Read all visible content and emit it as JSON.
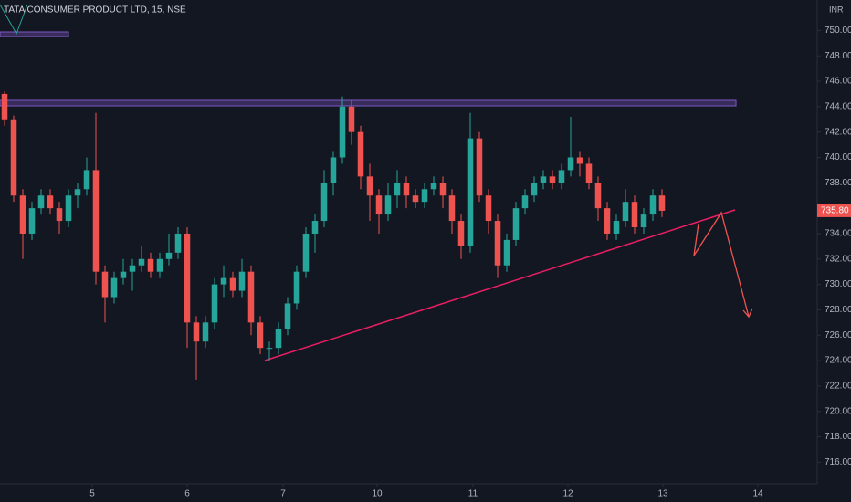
{
  "chart_data": {
    "type": "candlestick",
    "title": "TATA CONSUMER PRODUCT LTD, 15, NSE",
    "currency": "INR",
    "x": [
      0,
      1,
      2,
      3,
      4,
      5,
      6,
      7,
      8,
      9,
      10,
      11,
      12,
      13,
      14,
      15,
      16,
      17,
      18,
      19,
      20,
      21,
      22,
      23,
      24,
      25,
      26,
      27,
      28,
      29,
      30,
      31,
      32,
      33,
      34,
      35,
      36,
      37,
      38,
      39,
      40,
      41,
      42,
      43,
      44,
      45,
      46,
      47,
      48,
      49,
      50,
      51,
      52,
      53,
      54,
      55,
      56,
      57,
      58,
      59,
      60,
      61,
      62,
      63,
      64,
      65,
      66,
      67,
      68,
      69,
      70,
      71,
      72
    ],
    "open": [
      745,
      743,
      737,
      734,
      736,
      737,
      736,
      735,
      737,
      737.5,
      739,
      731,
      729,
      730.5,
      731,
      731.5,
      732,
      731,
      732,
      732.5,
      734,
      727,
      725.5,
      727,
      730,
      730.5,
      729.5,
      731,
      727,
      725,
      725,
      726.5,
      728.5,
      731,
      734,
      735,
      738,
      740,
      744,
      742,
      738.5,
      737,
      735.5,
      737,
      738,
      737,
      736.5,
      737.5,
      738,
      737,
      735,
      733,
      741.5,
      737,
      735,
      731.5,
      733.5,
      736,
      737,
      738,
      738.5,
      738,
      739,
      740,
      739.5,
      738,
      736,
      734,
      735,
      736.5,
      734.5,
      735.5,
      737
    ],
    "high": [
      745.2,
      743.3,
      737.5,
      736.5,
      737.5,
      737.5,
      736.5,
      737.5,
      738,
      740,
      743.5,
      731.5,
      731,
      732,
      732,
      733,
      732.5,
      732.5,
      734,
      734.5,
      734.5,
      727.5,
      727.5,
      730.5,
      731.5,
      731,
      732,
      731.5,
      727.5,
      725.5,
      727,
      729,
      731.5,
      734.5,
      735.5,
      739,
      740.5,
      744.8,
      744.5,
      742.5,
      739.5,
      737.5,
      738,
      739,
      738.5,
      737.5,
      738,
      738.5,
      738.5,
      737.5,
      735.5,
      743.5,
      742,
      737.5,
      735.5,
      734,
      736.5,
      737.5,
      738.5,
      739,
      739,
      739.5,
      743.2,
      740.5,
      740,
      738.5,
      736.5,
      735.5,
      737.5,
      737,
      736,
      737.5,
      737.5
    ],
    "low": [
      742.5,
      736.5,
      732,
      733.5,
      735.5,
      735.5,
      734,
      734.5,
      736,
      737,
      730,
      727,
      728.5,
      730,
      729.5,
      731,
      730.5,
      730.5,
      731.5,
      732,
      725,
      722.5,
      725,
      726.5,
      729,
      729,
      729,
      726,
      724.5,
      724,
      724.5,
      726,
      728,
      730.5,
      732.5,
      734.5,
      737,
      739.5,
      741,
      737.5,
      735,
      734,
      735,
      736,
      736,
      736,
      736,
      737,
      736,
      734,
      732,
      732.5,
      736.5,
      734,
      730.5,
      731,
      733,
      735.5,
      736.5,
      737.5,
      737.5,
      737.5,
      738.5,
      738.5,
      737.5,
      735,
      733.5,
      733.5,
      734.5,
      734,
      734,
      735,
      735.3
    ],
    "close": [
      743,
      737,
      734,
      736,
      737,
      736,
      735,
      737,
      737.5,
      739,
      731,
      729,
      730.5,
      731,
      731.5,
      732,
      731,
      732,
      732.5,
      734,
      727,
      725.5,
      727,
      730,
      730.5,
      729.5,
      731,
      727,
      725,
      725,
      726.5,
      728.5,
      731,
      734,
      735,
      738,
      740,
      744,
      742,
      738.5,
      737,
      735.5,
      737,
      738,
      737,
      736.5,
      737.5,
      738,
      737,
      735,
      733,
      741.5,
      737,
      735,
      731.5,
      733.5,
      736,
      737,
      738,
      738.5,
      738,
      739,
      740,
      739.5,
      738,
      736,
      734,
      735,
      736.5,
      734.5,
      735.5,
      737,
      735.8
    ],
    "up_color": "#26a69a",
    "down_color": "#ef5350",
    "last_price": {
      "value": 735.8,
      "label": "735.80"
    },
    "xlim": [
      -0.5,
      89
    ],
    "xticks": [
      {
        "value": 9.6,
        "label": "5"
      },
      {
        "value": 20,
        "label": "6"
      },
      {
        "value": 30.5,
        "label": "7"
      },
      {
        "value": 40.8,
        "label": "10"
      },
      {
        "value": 51.3,
        "label": "11"
      },
      {
        "value": 61.7,
        "label": "12"
      },
      {
        "value": 72.1,
        "label": "13"
      },
      {
        "value": 82.5,
        "label": "14"
      }
    ],
    "ylim": [
      714.3,
      752.4
    ],
    "yticks": [
      {
        "value": 716,
        "label": "716.00"
      },
      {
        "value": 718,
        "label": "718.00"
      },
      {
        "value": 720,
        "label": "720.00"
      },
      {
        "value": 722,
        "label": "722.00"
      },
      {
        "value": 724,
        "label": "724.00"
      },
      {
        "value": 726,
        "label": "726.00"
      },
      {
        "value": 728,
        "label": "728.00"
      },
      {
        "value": 730,
        "label": "730.00"
      },
      {
        "value": 732,
        "label": "732.00"
      },
      {
        "value": 734,
        "label": "734.00"
      },
      {
        "value": 736,
        "label": "736.00"
      },
      {
        "value": 738,
        "label": "738.00"
      },
      {
        "value": 740,
        "label": "740.00"
      },
      {
        "value": 742,
        "label": "742.00"
      },
      {
        "value": 744,
        "label": "744.00"
      },
      {
        "value": 746,
        "label": "746.00"
      },
      {
        "value": 748,
        "label": "748.00"
      },
      {
        "value": 750,
        "label": "750.00"
      }
    ],
    "grid": false
  }
}
